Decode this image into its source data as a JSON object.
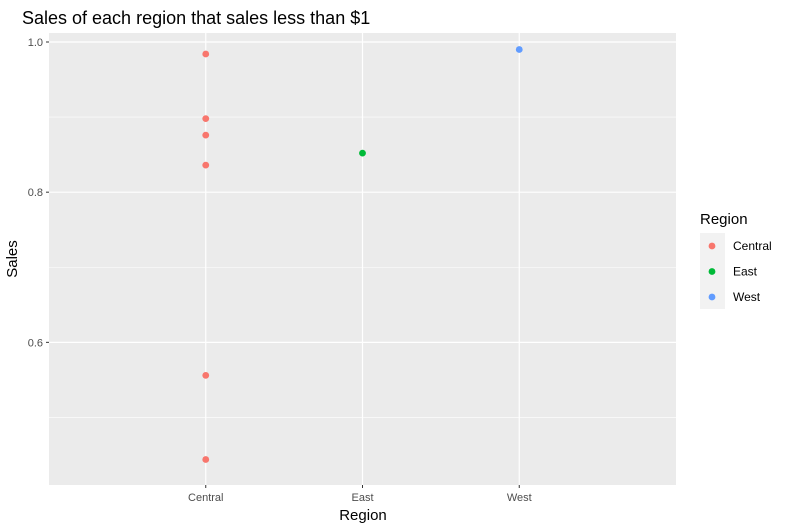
{
  "chart_data": {
    "type": "scatter",
    "title": "Sales of each region that sales less than $1",
    "xlabel": "Region",
    "ylabel": "Sales",
    "categories": [
      "Central",
      "East",
      "West"
    ],
    "ylim": [
      0.41,
      1.012
    ],
    "yticks": [
      0.6,
      0.8,
      1.0
    ],
    "ytick_labels": [
      "0.6",
      "0.8",
      "1.0"
    ],
    "grid": true,
    "legend": {
      "title": "Region",
      "position": "right",
      "entries": [
        "Central",
        "East",
        "West"
      ]
    },
    "colors": {
      "Central": "#F8766D",
      "East": "#00BA38",
      "West": "#619CFF",
      "panel_bg": "#EBEBEB",
      "grid": "#FFFFFF"
    },
    "series": [
      {
        "name": "Central",
        "x": [
          "Central",
          "Central",
          "Central",
          "Central",
          "Central",
          "Central"
        ],
        "y": [
          0.984,
          0.898,
          0.876,
          0.836,
          0.556,
          0.444
        ]
      },
      {
        "name": "East",
        "x": [
          "East"
        ],
        "y": [
          0.852
        ]
      },
      {
        "name": "West",
        "x": [
          "West"
        ],
        "y": [
          0.99
        ]
      }
    ]
  }
}
